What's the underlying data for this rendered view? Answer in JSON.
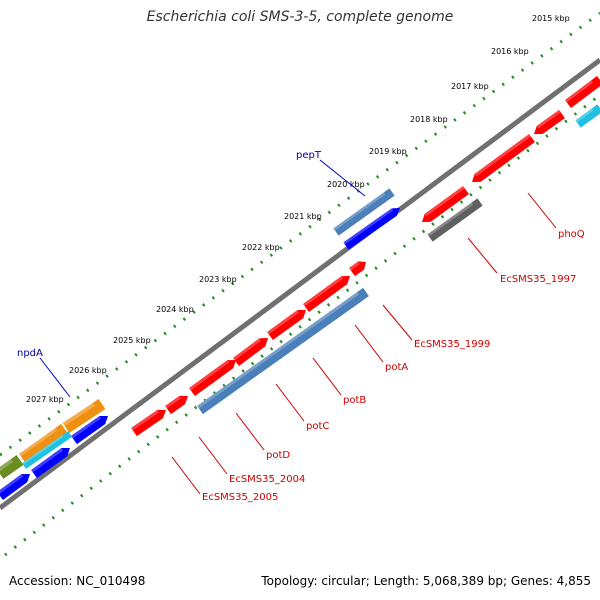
{
  "title": "Escherichia coli SMS-3-5, complete genome",
  "footer": {
    "accession": "Accession: NC_010498",
    "topology": "Topology: circular; Length: 5,068,389 bp; Genes: 4,855"
  },
  "ticks": [
    "2015 kbp",
    "2016 kbp",
    "2017 kbp",
    "2018 kbp",
    "2019 kbp",
    "2020 kbp",
    "2021 kbp",
    "2022 kbp",
    "2023 kbp",
    "2024 kbp",
    "2025 kbp",
    "2026 kbp",
    "2027 kbp"
  ],
  "gene_labels": {
    "pepT": "pepT",
    "npdA": "npdA",
    "phoQ": "phoQ",
    "EcSMS35_1997": "EcSMS35_1997",
    "EcSMS35_1999": "EcSMS35_1999",
    "potA": "potA",
    "potB": "potB",
    "potC": "potC",
    "potD": "potD",
    "EcSMS35_2004": "EcSMS35_2004",
    "EcSMS35_2005": "EcSMS35_2005"
  },
  "colors": {
    "backbone": "#7f7f7f",
    "dots": "#228b22",
    "gene_red": "#ff0000",
    "gene_blue": "#0000ff",
    "gene_steelblue": "#4a7fba",
    "gene_gray": "#606060",
    "gene_orange": "#f09010",
    "gene_cyan": "#20c0e0",
    "gene_olive": "#6b8e23",
    "label_red": "#cc0000",
    "label_blue": "#0000aa"
  }
}
